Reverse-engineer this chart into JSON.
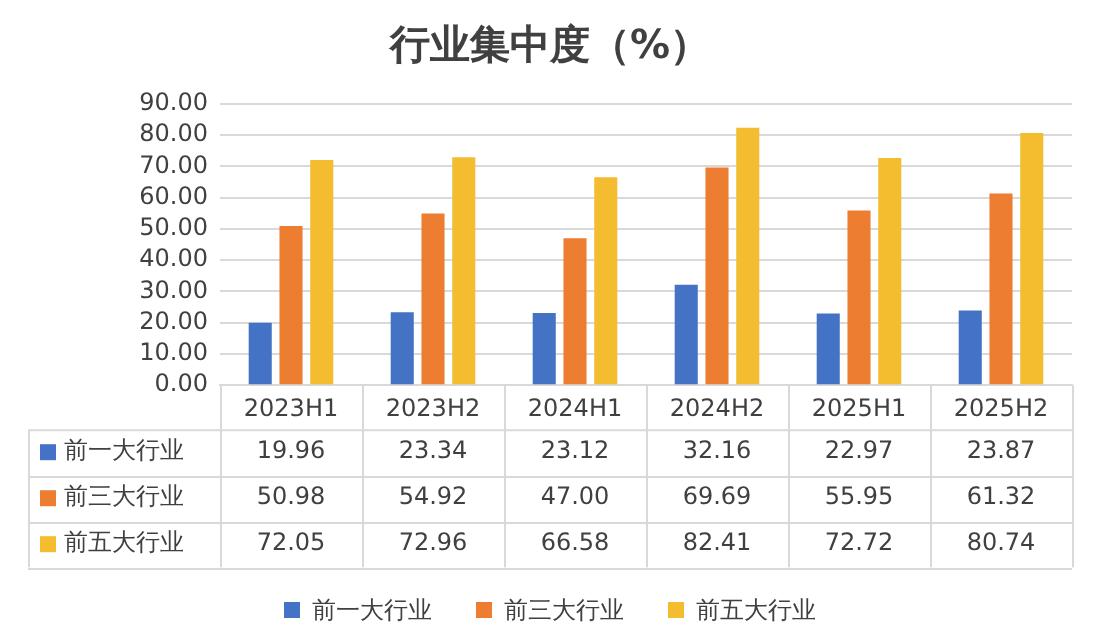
{
  "chart_data": {
    "type": "bar",
    "title": "行业集中度（%）",
    "categories": [
      "2023H1",
      "2023H2",
      "2024H1",
      "2024H2",
      "2025H1",
      "2025H2"
    ],
    "series": [
      {
        "name": "前一大行业",
        "color": "#4472c4",
        "values": [
          19.96,
          23.34,
          23.12,
          32.16,
          22.97,
          23.87
        ],
        "value_labels": [
          "19.96",
          "23.34",
          "23.12",
          "32.16",
          "22.97",
          "23.87"
        ]
      },
      {
        "name": "前三大行业",
        "color": "#ed7d31",
        "values": [
          50.98,
          54.92,
          47.0,
          69.69,
          55.95,
          61.32
        ],
        "value_labels": [
          "50.98",
          "54.92",
          "47.00",
          "69.69",
          "55.95",
          "61.32"
        ]
      },
      {
        "name": "前五大行业",
        "color": "#f4bd2f",
        "values": [
          72.05,
          72.96,
          66.58,
          82.41,
          72.72,
          80.74
        ],
        "value_labels": [
          "72.05",
          "72.96",
          "66.58",
          "82.41",
          "72.72",
          "80.74"
        ]
      }
    ],
    "ylim": [
      0,
      90
    ],
    "yticks": [
      {
        "value": 0,
        "label": "0.00"
      },
      {
        "value": 10,
        "label": "10.00"
      },
      {
        "value": 20,
        "label": "20.00"
      },
      {
        "value": 30,
        "label": "30.00"
      },
      {
        "value": 40,
        "label": "40.00"
      },
      {
        "value": 50,
        "label": "50.00"
      },
      {
        "value": 60,
        "label": "60.00"
      },
      {
        "value": 70,
        "label": "70.00"
      },
      {
        "value": 80,
        "label": "80.00"
      },
      {
        "value": 90,
        "label": "90.00"
      }
    ],
    "grid": "y",
    "legend": "bottom"
  }
}
